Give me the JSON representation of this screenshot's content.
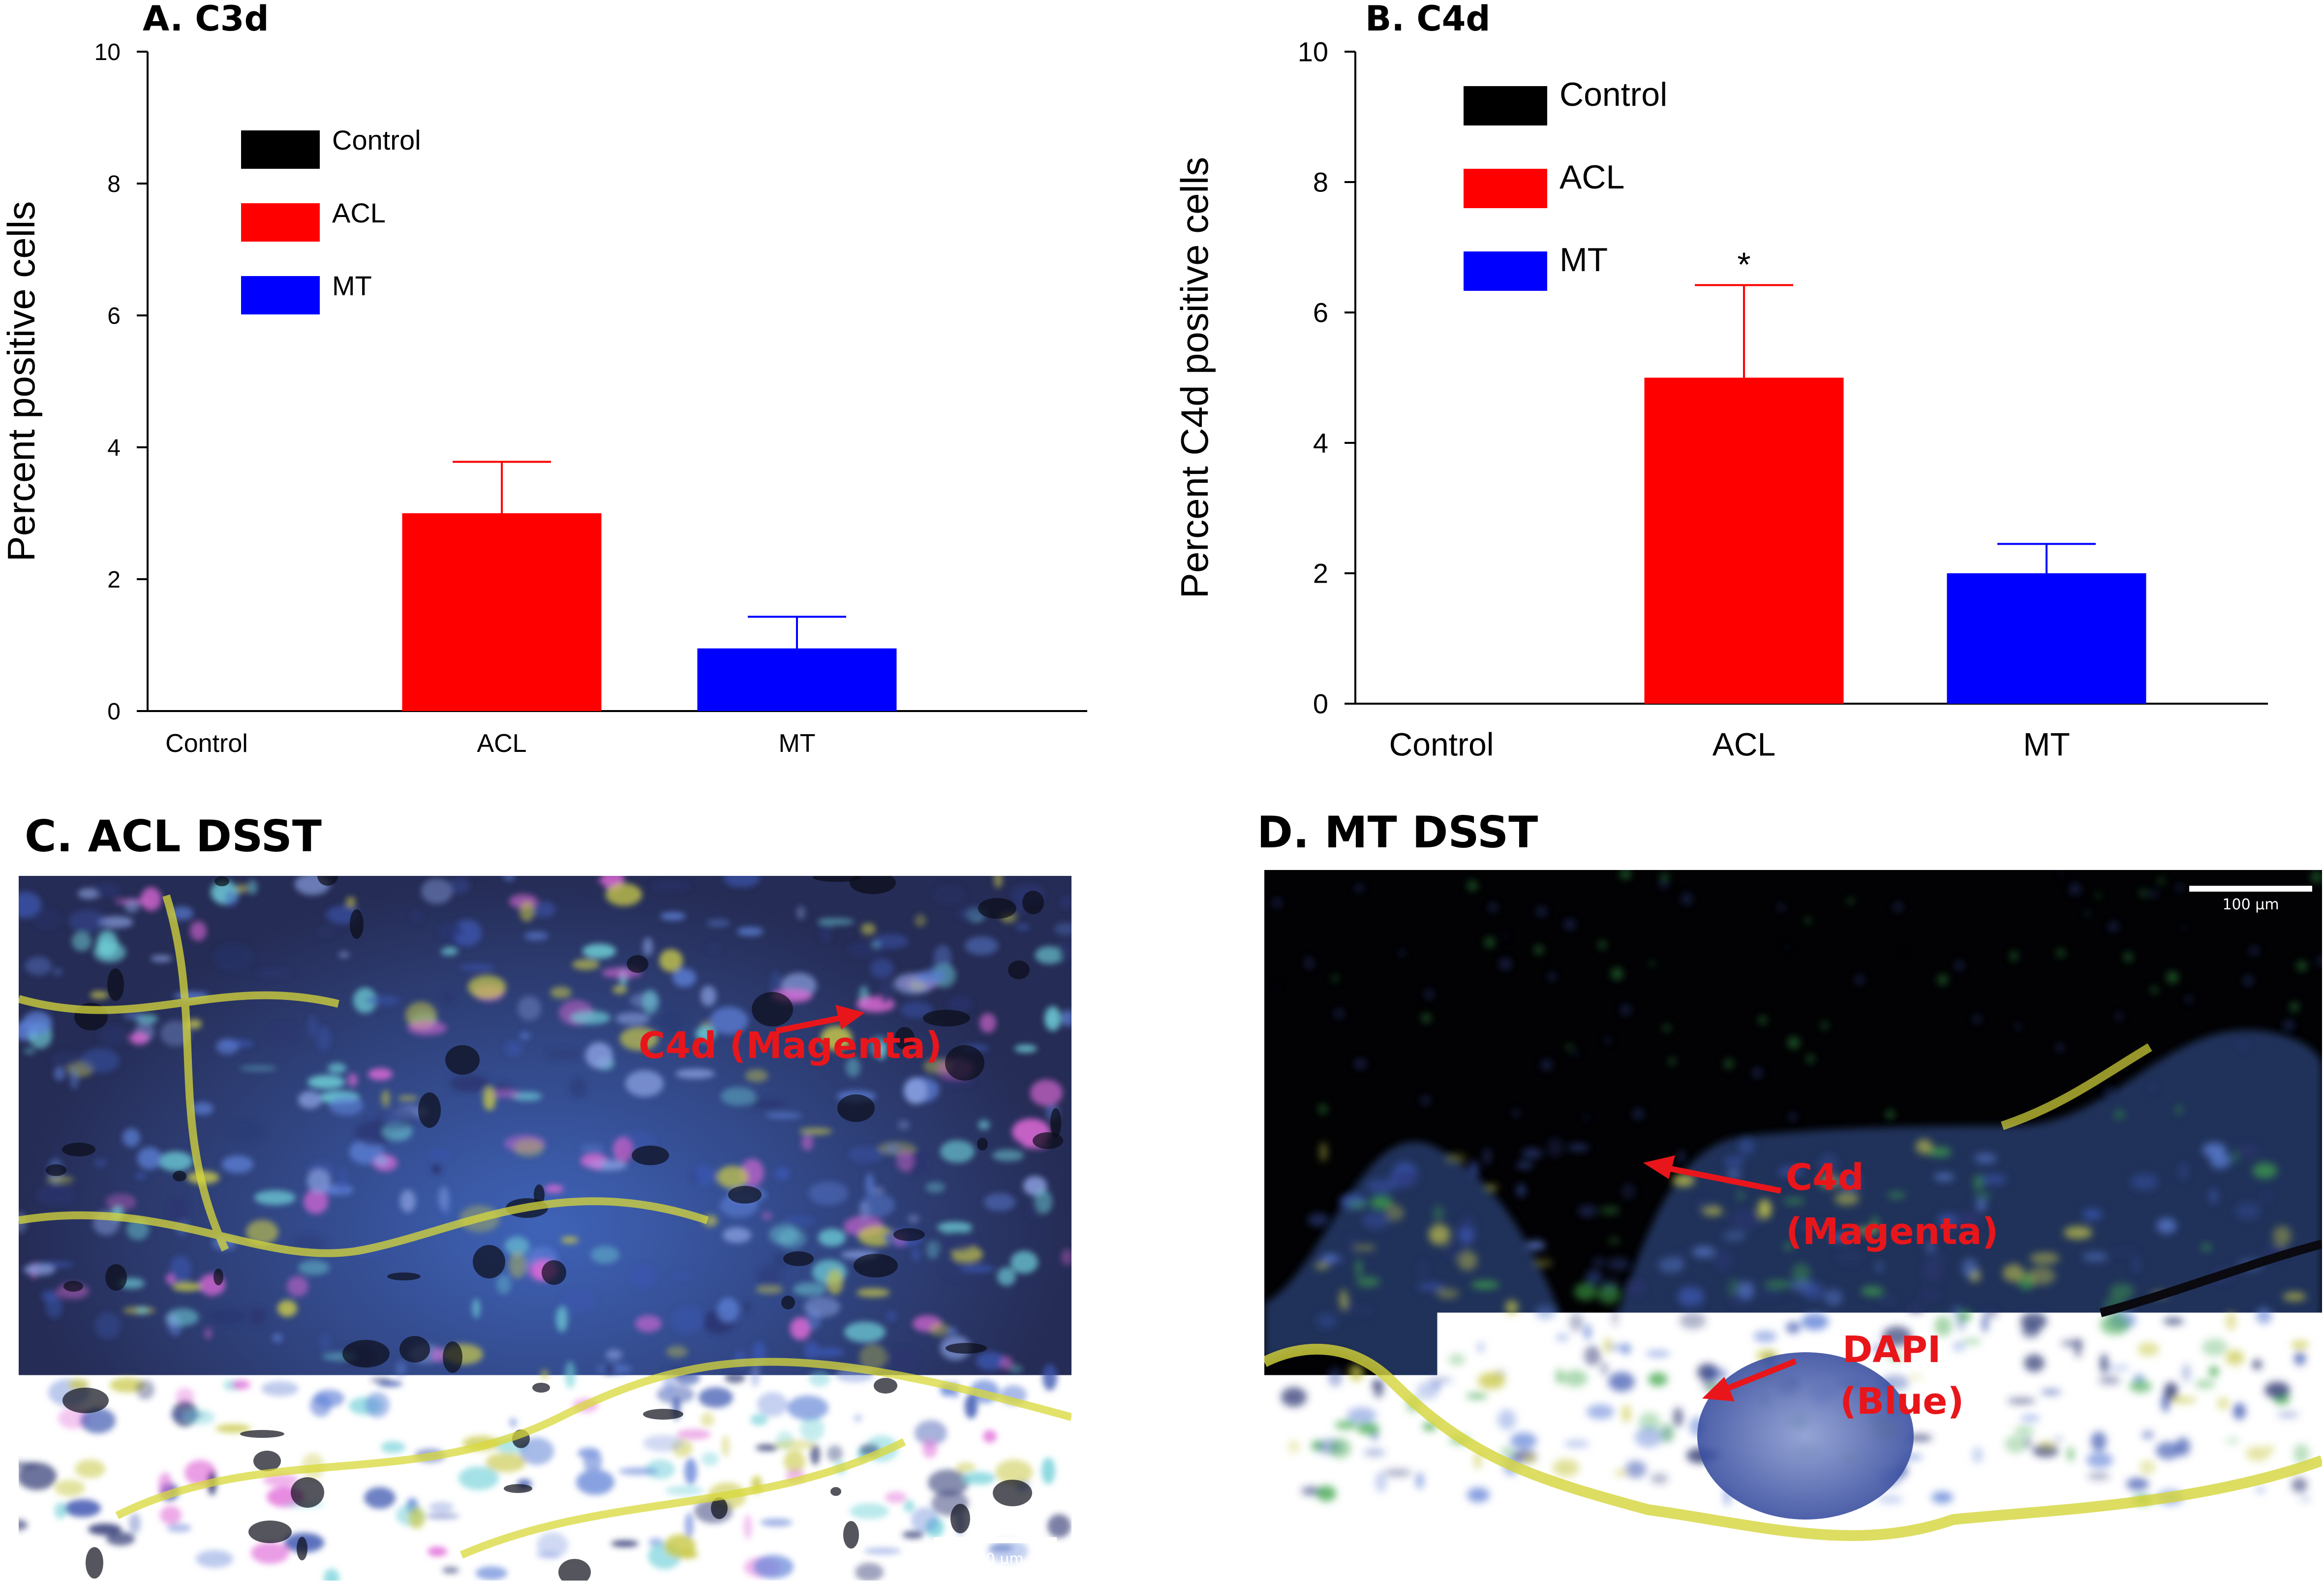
{
  "chart_data": [
    {
      "id": "A",
      "type": "bar",
      "title": "A. C3d",
      "ylabel": "Percent  positive cells",
      "xlabel": "",
      "categories": [
        "Control",
        "ACL",
        "MT"
      ],
      "values": [
        0,
        3.0,
        0.95
      ],
      "errors": [
        0,
        0.78,
        0.48
      ],
      "colors": [
        "#000000",
        "#ff0000",
        "#0000ff"
      ],
      "ylim": [
        0,
        10
      ],
      "yticks": [
        "0",
        "2",
        "4",
        "6",
        "8",
        "10"
      ],
      "legend": [
        {
          "label": "Control",
          "color": "#000000"
        },
        {
          "label": "ACL",
          "color": "#ff0000"
        },
        {
          "label": "MT",
          "color": "#0000ff"
        }
      ],
      "legend_position": "top-left",
      "annotations": [],
      "grid": false
    },
    {
      "id": "B",
      "type": "bar",
      "title": "B. C4d",
      "ylabel": "Percent  C4d positive cells",
      "xlabel": "",
      "categories": [
        "Control",
        "ACL",
        "MT"
      ],
      "values": [
        0,
        5.0,
        2.0
      ],
      "errors": [
        0,
        1.42,
        0.45
      ],
      "colors": [
        "#000000",
        "#ff0000",
        "#0000ff"
      ],
      "ylim": [
        0,
        10
      ],
      "yticks": [
        "0",
        "2",
        "4",
        "6",
        "8",
        "10"
      ],
      "legend": [
        {
          "label": "Control",
          "color": "#000000"
        },
        {
          "label": "ACL",
          "color": "#ff0000"
        },
        {
          "label": "MT",
          "color": "#0000ff"
        }
      ],
      "legend_position": "top-left",
      "annotations": [
        {
          "category": "ACL",
          "text": "*"
        }
      ],
      "grid": false
    }
  ],
  "images": {
    "c": {
      "title": "C. ACL DSST",
      "scale_bar": "100 µm",
      "annotations": [
        "C4d (Magenta)"
      ]
    },
    "d": {
      "title": "D. MT DSST",
      "scale_bar": "100 µm",
      "annotations": [
        "C4d",
        "(Magenta)",
        "DAPI",
        "(Blue)"
      ]
    }
  }
}
